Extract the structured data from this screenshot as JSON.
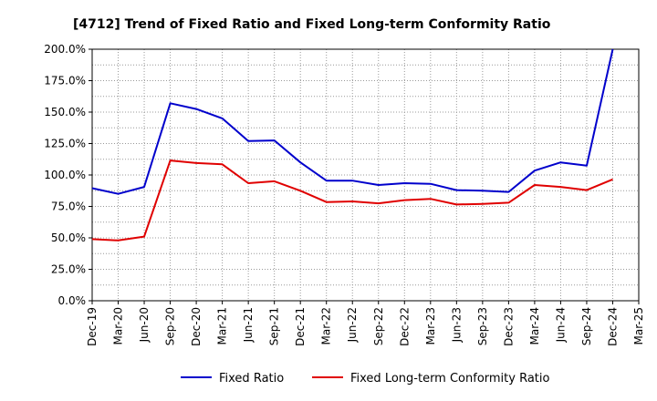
{
  "chart_data": {
    "type": "line",
    "title": "[4712]  Trend of Fixed Ratio and Fixed Long-term Conformity Ratio",
    "xlabel": "",
    "ylabel": "",
    "ylim": [
      0,
      200
    ],
    "y_ticks": [
      "0.0%",
      "25.0%",
      "50.0%",
      "75.0%",
      "100.0%",
      "125.0%",
      "150.0%",
      "175.0%",
      "200.0%"
    ],
    "y_tick_values": [
      0,
      25,
      50,
      75,
      100,
      125,
      150,
      175,
      200
    ],
    "x": [
      "Dec-19",
      "Mar-20",
      "Jun-20",
      "Sep-20",
      "Dec-20",
      "Mar-21",
      "Jun-21",
      "Sep-21",
      "Dec-21",
      "Mar-22",
      "Jun-22",
      "Sep-22",
      "Dec-22",
      "Mar-23",
      "Jun-23",
      "Sep-23",
      "Dec-23",
      "Mar-24",
      "Jun-24",
      "Sep-24",
      "Dec-24",
      "Mar-25"
    ],
    "grid": true,
    "legend_position": "bottom",
    "series": [
      {
        "name": "Fixed Ratio",
        "color": "#0000cc",
        "values": [
          89.5,
          85.0,
          90.5,
          157.0,
          152.5,
          145.0,
          127.0,
          127.5,
          110.0,
          95.5,
          95.5,
          92.0,
          93.5,
          93.0,
          88.0,
          87.5,
          86.5,
          103.5,
          110.0,
          107.5,
          200.0,
          null
        ]
      },
      {
        "name": "Fixed Long-term Conformity Ratio",
        "color": "#e00000",
        "values": [
          49.0,
          48.0,
          51.0,
          111.5,
          109.5,
          108.5,
          93.5,
          95.0,
          87.5,
          78.5,
          79.0,
          77.5,
          80.0,
          81.0,
          76.5,
          77.0,
          78.0,
          92.0,
          90.5,
          88.0,
          96.5,
          null
        ]
      }
    ]
  }
}
